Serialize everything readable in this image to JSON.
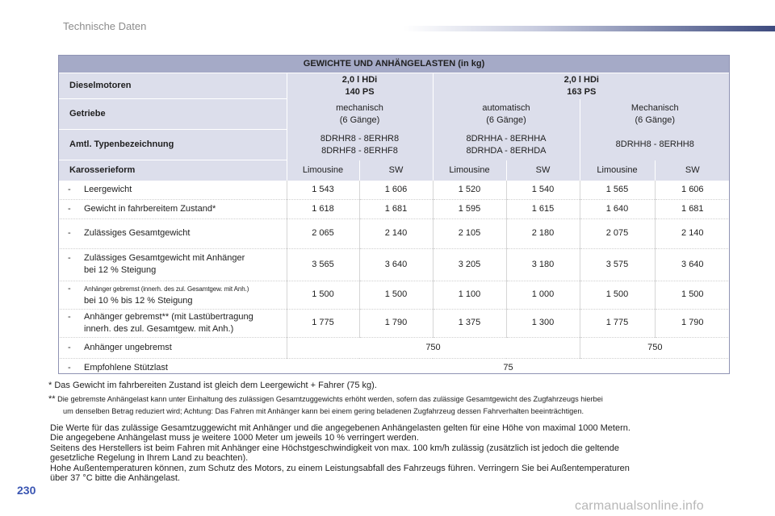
{
  "section_title": "Technische Daten",
  "page_number": "230",
  "watermark": "carmanualsonline.info",
  "table": {
    "title": "GEWICHTE UND ANHÄNGELASTEN (in kg)",
    "engines": {
      "label": "Dieselmotoren",
      "e1": [
        "2,0 l HDi",
        "140 PS"
      ],
      "e2": [
        "2,0 l HDi",
        "163 PS"
      ]
    },
    "gearbox": {
      "label": "Getriebe",
      "g1": [
        "mechanisch",
        "(6 Gänge)"
      ],
      "g2": [
        "automatisch",
        "(6 Gänge)"
      ],
      "g3": [
        "Mechanisch",
        "(6 Gänge)"
      ]
    },
    "type_designation": {
      "label": "Amtl. Typenbezeichnung",
      "t1": [
        "8DRHR8 - 8ERHR8",
        "8DRHF8 - 8ERHF8"
      ],
      "t2": [
        "8DRHHA - 8ERHHA",
        "8DRHDA - 8ERHDA"
      ],
      "t3": "8DRHH8 - 8ERHH8"
    },
    "body_style": {
      "label": "Karosserieform",
      "values": [
        "Limousine",
        "SW",
        "Limousine",
        "SW",
        "Limousine",
        "SW"
      ]
    },
    "rows": [
      {
        "dash": "-",
        "label": "Leergewicht",
        "values": [
          "1 543",
          "1 606",
          "1 520",
          "1 540",
          "1 565",
          "1 606"
        ]
      },
      {
        "dash": "-",
        "label": "Gewicht in fahrbereitem Zustand*",
        "values": [
          "1 618",
          "1 681",
          "1 595",
          "1 615",
          "1 640",
          "1 681"
        ]
      },
      {
        "dash": "-",
        "label": "Zulässiges Gesamtgewicht",
        "values": [
          "2 065",
          "2 140",
          "2 105",
          "2 180",
          "2 075",
          "2 140"
        ]
      },
      {
        "dash": "-",
        "label": "Zulässiges Gesamtgewicht mit Anhänger",
        "label2": "bei 12 % Steigung",
        "values": [
          "3 565",
          "3 640",
          "3 205",
          "3 180",
          "3 575",
          "3 640"
        ]
      },
      {
        "dash": "-",
        "label": "Anhänger gebremst (innerh. des zul. Gesamtgew. mit Anh.)",
        "label2": "bei 10 % bis 12 % Steigung",
        "values": [
          "1 500",
          "1 500",
          "1 100",
          "1 000",
          "1 500",
          "1 500"
        ]
      },
      {
        "dash": "-",
        "label": "Anhänger gebremst** (mit Lastübertragung",
        "label2": "innerh. des zul. Gesamtgew. mit Anh.)",
        "values": [
          "1 775",
          "1 790",
          "1 375",
          "1 300",
          "1 775",
          "1 790"
        ]
      }
    ],
    "unbraked": {
      "dash": "-",
      "label": "Anhänger ungebremst",
      "values": [
        "750",
        "750"
      ]
    },
    "support_load": {
      "dash": "-",
      "label": "Empfohlene Stützlast",
      "value": "75"
    }
  },
  "footnotes": {
    "f1": "* Das Gewicht im fahrbereiten Zustand ist gleich dem Leergewicht + Fahrer (75 kg).",
    "f2_marker": "**",
    "f2_line1": "Die gebremste Anhängelast kann unter Einhaltung des zulässigen Gesamtzuggewichts erhöht werden, sofern das zulässige Gesamtgewicht des Zugfahrzeugs hierbei",
    "f2_line2": "um denselben Betrag reduziert wird; Achtung: Das Fahren mit Anhänger kann bei einem gering beladenen Zugfahrzeug dessen Fahrverhalten beeinträchtigen."
  },
  "paragraph": [
    "Die Werte für das zulässige Gesamtzuggewicht mit Anhänger und die angegebenen Anhängelasten gelten für eine Höhe von maximal 1000 Metern.",
    "Die angegebene Anhängelast muss je weitere 1000 Meter um jeweils 10 % verringert werden.",
    "Seitens des Herstellers ist beim Fahren mit Anhänger eine Höchstgeschwindigkeit von max. 100 km/h zulässig (zusätzlich ist jedoch die geltende",
    "gesetzliche Regelung in Ihrem Land zu beachten).",
    "Hohe Außentemperaturen können, zum Schutz des Motors, zu einem Leistungsabfall des Fahrzeugs führen. Verringern Sie bei Außentemperaturen",
    "über 37 °C bitte die Anhängelast."
  ]
}
